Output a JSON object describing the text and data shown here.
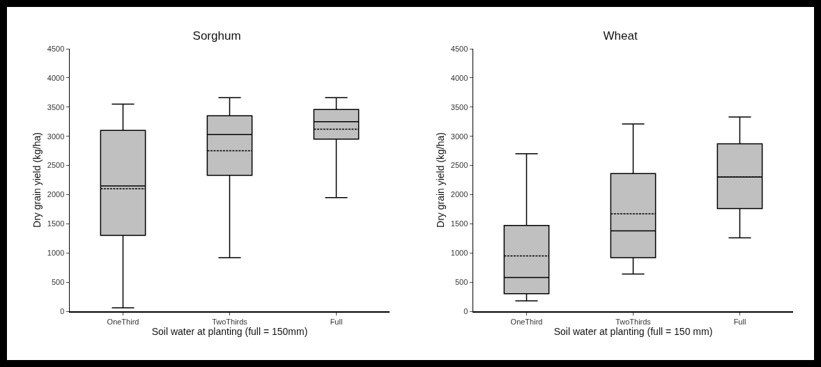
{
  "chart_data": [
    {
      "type": "box",
      "title": "Sorghum",
      "xlabel": "Soil water at planting (full = 150mm)",
      "ylabel": "Dry grain yield (kg/ha)",
      "categories": [
        "OneThird",
        "TwoThirds",
        "Full"
      ],
      "color": "#c0c0c0",
      "ylim": [
        0,
        4500
      ],
      "yticks": [
        0,
        500,
        1000,
        1500,
        2000,
        2500,
        3000,
        3500,
        4000,
        4500
      ],
      "grid": false,
      "boxes": [
        {
          "low": 60,
          "q1": 1300,
          "median": 2150,
          "q3": 3100,
          "high": 3550,
          "mean": 2100
        },
        {
          "low": 920,
          "q1": 2330,
          "median": 3030,
          "q3": 3350,
          "high": 3660,
          "mean": 2750
        },
        {
          "low": 1950,
          "q1": 2950,
          "median": 3250,
          "q3": 3460,
          "high": 3660,
          "mean": 3120
        }
      ]
    },
    {
      "type": "box",
      "title": "Wheat",
      "xlabel": "Soil water at planting (full = 150 mm)",
      "ylabel": "Dry grain yield (kg/ha)",
      "categories": [
        "OneThird",
        "TwoThirds",
        "Full"
      ],
      "color": "#c0c0c0",
      "ylim": [
        0,
        4500
      ],
      "yticks": [
        0,
        500,
        1000,
        1500,
        2000,
        2500,
        3000,
        3500,
        4000,
        4500
      ],
      "grid": false,
      "boxes": [
        {
          "low": 180,
          "q1": 300,
          "median": 580,
          "q3": 1470,
          "high": 2700,
          "mean": 950
        },
        {
          "low": 640,
          "q1": 920,
          "median": 1380,
          "q3": 2360,
          "high": 3210,
          "mean": 1670
        },
        {
          "low": 1260,
          "q1": 1760,
          "median": 2300,
          "q3": 2870,
          "high": 3330,
          "mean": 2300
        }
      ]
    }
  ]
}
